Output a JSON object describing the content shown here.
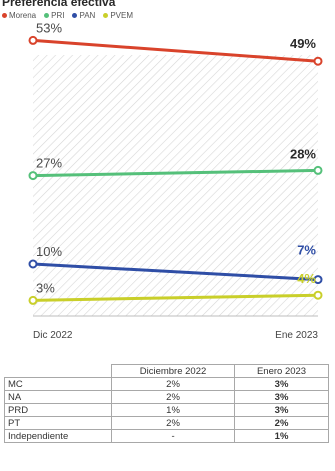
{
  "header": {
    "title": "Preferencia efectiva"
  },
  "chart_data": {
    "type": "line",
    "title": "Preferencia efectiva",
    "x": [
      "Dic 2022",
      "Ene 2023"
    ],
    "ylim": [
      0,
      57
    ],
    "grid": false,
    "legend_position": "top-left",
    "series": [
      {
        "name": "Morena",
        "values": [
          53,
          49
        ],
        "labels": [
          "53%",
          "49%"
        ],
        "color": "#d9432b"
      },
      {
        "name": "PRI",
        "values": [
          27,
          28
        ],
        "labels": [
          "27%",
          "28%"
        ],
        "color": "#55c07a"
      },
      {
        "name": "PAN",
        "values": [
          10,
          7
        ],
        "labels": [
          "10%",
          "7%"
        ],
        "color": "#2f4ea6"
      },
      {
        "name": "PVEM",
        "values": [
          3,
          4
        ],
        "labels": [
          "3%",
          "4%"
        ],
        "color": "#c9cf2a"
      }
    ]
  },
  "table": {
    "columns": [
      "Diciembre 2022",
      "Enero 2023"
    ],
    "rows": [
      {
        "party": "MC",
        "dec": "2%",
        "jan": "3%"
      },
      {
        "party": "NA",
        "dec": "2%",
        "jan": "3%"
      },
      {
        "party": "PRD",
        "dec": "1%",
        "jan": "3%"
      },
      {
        "party": "PT",
        "dec": "2%",
        "jan": "2%"
      },
      {
        "party": "Independiente",
        "dec": "-",
        "jan": "1%"
      }
    ]
  }
}
